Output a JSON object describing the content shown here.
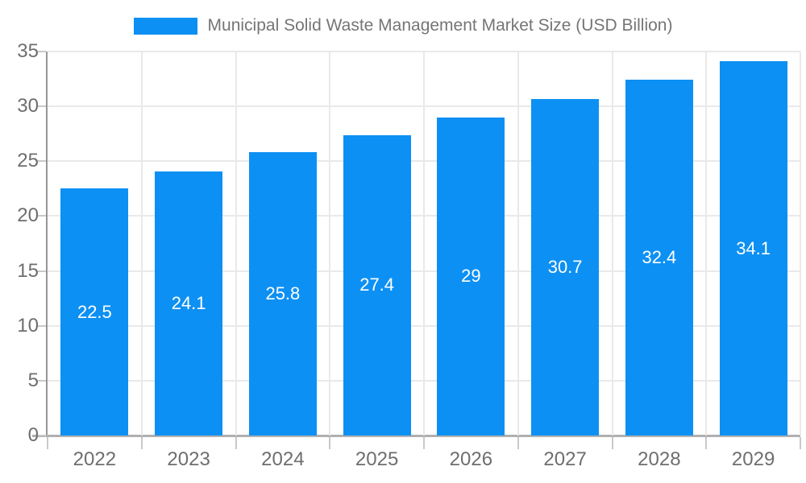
{
  "colors": {
    "bar": "#0d90f3",
    "grid": "#e9e9e9",
    "axis_y": "#969696",
    "axis_x": "#b0b0b0",
    "tick": "#c9c9c9",
    "tick_label": "#6e6e6e",
    "title": "#757575",
    "value_label": "#ffffff"
  },
  "legend": {
    "label": "Municipal Solid Waste Management Market Size (USD Billion)"
  },
  "chart_data": {
    "type": "bar",
    "title": "Municipal Solid Waste Management Market Size (USD Billion)",
    "categories": [
      "2022",
      "2023",
      "2024",
      "2025",
      "2026",
      "2027",
      "2028",
      "2029"
    ],
    "values": [
      22.5,
      24.1,
      25.8,
      27.4,
      29,
      30.7,
      32.4,
      34.1
    ],
    "value_labels": [
      "22.5",
      "24.1",
      "25.8",
      "27.4",
      "29",
      "30.7",
      "32.4",
      "34.1"
    ],
    "xlabel": "",
    "ylabel": "",
    "ylim": [
      0,
      35
    ],
    "yticks": [
      0,
      5,
      10,
      15,
      20,
      25,
      30,
      35
    ],
    "grid": true,
    "legend_position": "top",
    "value_label_position": "inside-center"
  }
}
